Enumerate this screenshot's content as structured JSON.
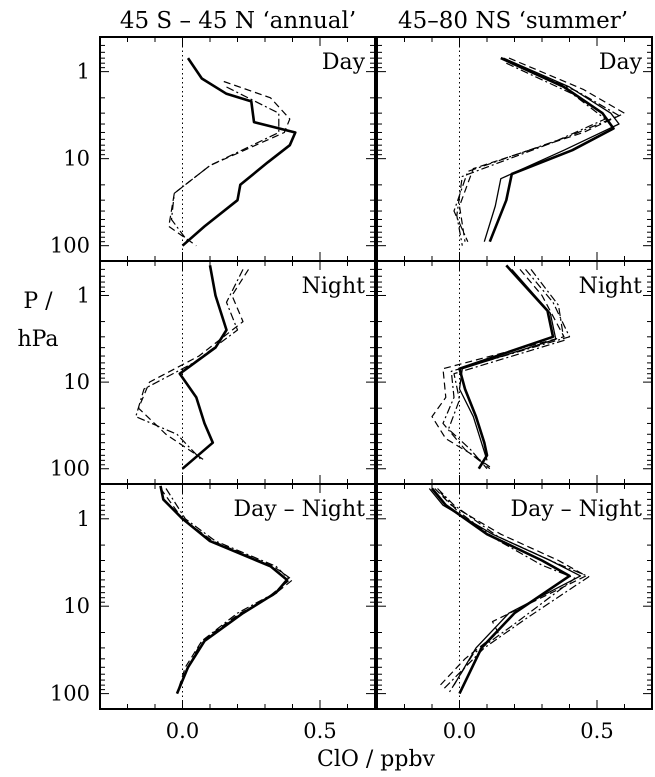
{
  "figure": {
    "column_titles": [
      "45 S – 45 N ‘annual’",
      "45–80 NS ‘summer’"
    ],
    "ylabel_line1": "P /",
    "ylabel_line2": "hPa",
    "xlabel": "ClO / ppbv"
  },
  "chart_data": [
    {
      "type": "line",
      "title": "45 S – 45 N ‘annual’",
      "panel_label": "Day",
      "xlim": [
        -0.3,
        0.7
      ],
      "ylim": [
        0.4,
        150
      ],
      "yscale": "log",
      "xticks": [
        0.0,
        0.5
      ],
      "yticks": [
        1,
        10,
        100
      ],
      "reference_line": {
        "x": 0.0,
        "style": "dotted"
      },
      "series": [
        {
          "style": "solid-bold",
          "x": [
            0.02,
            0.07,
            0.16,
            0.25,
            0.26,
            0.41,
            0.39,
            0.31,
            0.21,
            0.2,
            0.08,
            0.0
          ],
          "y": [
            0.7,
            1.2,
            1.8,
            2.2,
            3.8,
            5.0,
            7.0,
            11,
            20,
            30,
            60,
            100
          ]
        },
        {
          "style": "dashed",
          "x": [
            0.15,
            0.32,
            0.39,
            0.37,
            0.1,
            -0.03,
            -0.05,
            0.05
          ],
          "y": [
            1.3,
            2.0,
            3.5,
            5.0,
            12,
            25,
            60,
            100
          ]
        },
        {
          "style": "dash-dot",
          "x": [
            0.16,
            0.35,
            0.35,
            0.1,
            -0.03,
            -0.04,
            0.02
          ],
          "y": [
            1.5,
            3.0,
            5.0,
            12,
            25,
            50,
            90
          ]
        }
      ]
    },
    {
      "type": "line",
      "title": "45–80 NS ‘summer’",
      "panel_label": "Day",
      "xlim": [
        -0.3,
        0.7
      ],
      "ylim": [
        0.4,
        150
      ],
      "yscale": "log",
      "xticks": [
        0.0,
        0.5
      ],
      "yticks": [
        1,
        10,
        100
      ],
      "reference_line": {
        "x": 0.0,
        "style": "dotted"
      },
      "series": [
        {
          "style": "solid-bold",
          "x": [
            0.15,
            0.38,
            0.52,
            0.56,
            0.41,
            0.19,
            0.17,
            0.11
          ],
          "y": [
            0.7,
            1.5,
            3.0,
            4.5,
            8,
            15,
            30,
            90
          ]
        },
        {
          "style": "solid",
          "x": [
            0.16,
            0.4,
            0.55,
            0.58,
            0.38,
            0.15,
            0.13,
            0.09
          ],
          "y": [
            0.7,
            1.5,
            3.0,
            4.0,
            8,
            17,
            35,
            90
          ]
        },
        {
          "style": "dashed",
          "x": [
            0.18,
            0.45,
            0.6,
            0.45,
            0.05,
            0.0,
            0.02
          ],
          "y": [
            0.7,
            1.6,
            3.0,
            5.0,
            13,
            35,
            90
          ]
        },
        {
          "style": "dash-dot",
          "x": [
            0.19,
            0.43,
            0.58,
            0.4,
            0.03,
            -0.02,
            0.03
          ],
          "y": [
            0.8,
            1.7,
            3.2,
            5.5,
            14,
            40,
            90
          ]
        },
        {
          "style": "dash-dot",
          "x": [
            0.17,
            0.41,
            0.53,
            0.34,
            0.01,
            -0.01,
            0.01
          ],
          "y": [
            0.8,
            1.8,
            3.5,
            6.5,
            16,
            45,
            100
          ]
        }
      ]
    },
    {
      "type": "line",
      "title": "45 S – 45 N ‘annual’",
      "panel_label": "Night",
      "xlim": [
        -0.3,
        0.7
      ],
      "ylim": [
        0.4,
        150
      ],
      "yscale": "log",
      "xticks": [
        0.0,
        0.5
      ],
      "yticks": [
        1,
        10,
        100
      ],
      "reference_line": {
        "x": 0.0,
        "style": "dotted"
      },
      "series": [
        {
          "style": "solid-bold",
          "x": [
            0.1,
            0.12,
            0.16,
            0.12,
            -0.01,
            0.05,
            0.08,
            0.11,
            0.0
          ],
          "y": [
            0.45,
            1.0,
            2.5,
            4.0,
            8,
            15,
            30,
            50,
            100
          ]
        },
        {
          "style": "dashed",
          "x": [
            0.24,
            0.18,
            0.22,
            0.06,
            -0.12,
            -0.16,
            -0.06,
            0.08
          ],
          "y": [
            0.5,
            1.0,
            2.0,
            5.0,
            10,
            20,
            40,
            80
          ]
        },
        {
          "style": "dash-dot",
          "x": [
            0.22,
            0.16,
            0.2,
            0.04,
            -0.14,
            -0.17,
            -0.02,
            0.07
          ],
          "y": [
            0.5,
            1.2,
            2.5,
            6.0,
            12,
            25,
            40,
            80
          ]
        }
      ]
    },
    {
      "type": "line",
      "title": "45–80 NS ‘summer’",
      "panel_label": "Night",
      "xlim": [
        -0.3,
        0.7
      ],
      "ylim": [
        0.4,
        150
      ],
      "yscale": "log",
      "xticks": [
        0.0,
        0.5
      ],
      "yticks": [
        1,
        10,
        100
      ],
      "reference_line": {
        "x": 0.0,
        "style": "dotted"
      },
      "series": [
        {
          "style": "solid-bold",
          "x": [
            0.17,
            0.32,
            0.34,
            0.0,
            0.02,
            0.06,
            0.09,
            0.1,
            0.07
          ],
          "y": [
            0.45,
            1.5,
            3.0,
            7.0,
            12,
            25,
            50,
            70,
            100
          ]
        },
        {
          "style": "solid",
          "x": [
            0.19,
            0.33,
            0.35,
            0.01,
            0.0,
            0.05,
            0.08,
            0.1
          ],
          "y": [
            0.5,
            1.6,
            3.2,
            7.0,
            12,
            25,
            50,
            80
          ]
        },
        {
          "style": "dashed",
          "x": [
            0.22,
            0.3,
            0.38,
            -0.06,
            -0.05,
            -0.1,
            -0.05,
            0.05,
            0.12
          ],
          "y": [
            0.5,
            1.0,
            3.0,
            7.0,
            15,
            25,
            45,
            70,
            100
          ]
        },
        {
          "style": "dash-dot",
          "x": [
            0.24,
            0.34,
            0.4,
            -0.03,
            -0.02,
            -0.06,
            0.02,
            0.11
          ],
          "y": [
            0.5,
            1.2,
            3.0,
            7.5,
            15,
            30,
            60,
            100
          ]
        },
        {
          "style": "dash-dot",
          "x": [
            0.26,
            0.36,
            0.38,
            -0.02,
            0.0,
            -0.04,
            0.04,
            0.1
          ],
          "y": [
            0.5,
            1.3,
            3.3,
            8.0,
            16,
            35,
            60,
            100
          ]
        }
      ]
    },
    {
      "type": "line",
      "title": "45 S – 45 N ‘annual’",
      "panel_label": "Day – Night",
      "xlim": [
        -0.3,
        0.7
      ],
      "ylim": [
        0.4,
        150
      ],
      "yscale": "log",
      "xticks": [
        0.0,
        0.5
      ],
      "yticks": [
        1,
        10,
        100
      ],
      "reference_line": {
        "x": 0.0,
        "style": "dotted"
      },
      "series": [
        {
          "style": "solid-bold",
          "x": [
            -0.08,
            -0.07,
            0.0,
            0.1,
            0.32,
            0.38,
            0.34,
            0.22,
            0.08,
            0.02,
            -0.02
          ],
          "y": [
            0.42,
            0.6,
            1.0,
            1.8,
            3.5,
            5.0,
            7.0,
            12,
            25,
            50,
            100
          ]
        },
        {
          "style": "dashed",
          "x": [
            -0.08,
            0.0,
            0.11,
            0.33,
            0.4,
            0.33,
            0.21,
            0.07,
            0.01,
            -0.02
          ],
          "y": [
            0.45,
            1.0,
            1.8,
            3.5,
            5.0,
            7.5,
            12,
            25,
            50,
            100
          ]
        },
        {
          "style": "dash-dot",
          "x": [
            -0.06,
            0.01,
            0.12,
            0.34,
            0.39,
            0.32,
            0.2,
            0.07,
            0.02
          ],
          "y": [
            0.45,
            1.0,
            1.8,
            3.5,
            5.0,
            7.5,
            12,
            25,
            50
          ]
        }
      ]
    },
    {
      "type": "line",
      "title": "45–80 NS ‘summer’",
      "panel_label": "Day – Night",
      "xlim": [
        -0.3,
        0.7
      ],
      "ylim": [
        0.4,
        150
      ],
      "yscale": "log",
      "xticks": [
        0.0,
        0.5
      ],
      "yticks": [
        1,
        10,
        100
      ],
      "reference_line": {
        "x": 0.0,
        "style": "dotted"
      },
      "series": [
        {
          "style": "solid-bold",
          "x": [
            -0.1,
            -0.05,
            0.1,
            0.3,
            0.4,
            0.2,
            0.08,
            0.0
          ],
          "y": [
            0.45,
            0.7,
            1.5,
            3.0,
            4.5,
            12,
            30,
            100
          ]
        },
        {
          "style": "solid",
          "x": [
            -0.11,
            -0.06,
            0.12,
            0.33,
            0.44,
            0.18,
            0.06,
            -0.02
          ],
          "y": [
            0.45,
            0.7,
            1.5,
            3.0,
            4.5,
            12,
            30,
            80
          ]
        },
        {
          "style": "dashed",
          "x": [
            -0.09,
            -0.03,
            0.15,
            0.36,
            0.46,
            0.12,
            0.14,
            0.02,
            -0.07
          ],
          "y": [
            0.45,
            0.7,
            1.5,
            3.0,
            4.5,
            15,
            20,
            40,
            80
          ]
        },
        {
          "style": "dash-dot",
          "x": [
            -0.08,
            -0.02,
            0.14,
            0.35,
            0.47,
            0.24,
            0.09,
            -0.06
          ],
          "y": [
            0.45,
            0.7,
            1.6,
            3.2,
            4.6,
            14,
            30,
            90
          ]
        },
        {
          "style": "dash-dot",
          "x": [
            -0.07,
            -0.01,
            0.13,
            0.3,
            0.42,
            0.2,
            0.05,
            -0.04
          ],
          "y": [
            0.5,
            0.8,
            1.7,
            3.4,
            4.8,
            16,
            35,
            100
          ]
        }
      ]
    }
  ]
}
